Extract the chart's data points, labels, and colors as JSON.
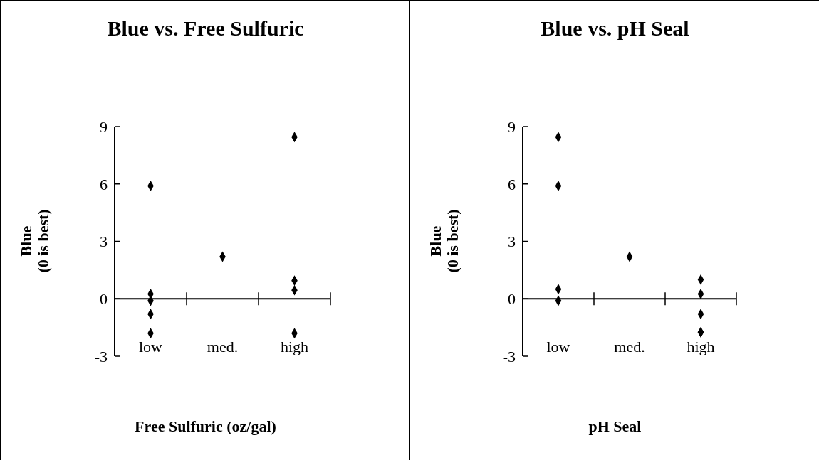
{
  "chart_data": [
    {
      "type": "scatter",
      "title": "Blue vs. Free Sulfuric",
      "xlabel": "Free Sulfuric (oz/gal)",
      "ylabel": "Blue\n(0 is best)",
      "marker": "diamond",
      "grid": false,
      "legend": false,
      "categories": [
        "low",
        "med.",
        "high"
      ],
      "ylim": [
        -3,
        9
      ],
      "yticks": [
        -3,
        0,
        3,
        6,
        9
      ],
      "series": [
        {
          "color": "#000000",
          "x": [
            "low",
            "low",
            "low",
            "low",
            "low",
            "med.",
            "high",
            "high",
            "high",
            "high"
          ],
          "values": [
            5.9,
            0.25,
            -0.1,
            -0.8,
            -1.8,
            2.2,
            8.45,
            0.95,
            0.45,
            -1.8
          ]
        }
      ]
    },
    {
      "type": "scatter",
      "title": "Blue vs. pH Seal",
      "xlabel": "pH Seal",
      "ylabel": "Blue\n(0 is best)",
      "marker": "diamond",
      "grid": false,
      "legend": false,
      "categories": [
        "low",
        "med.",
        "high"
      ],
      "ylim": [
        -3,
        9
      ],
      "yticks": [
        -3,
        0,
        3,
        6,
        9
      ],
      "series": [
        {
          "color": "#000000",
          "x": [
            "low",
            "low",
            "low",
            "low",
            "med.",
            "high",
            "high",
            "high",
            "high",
            "high"
          ],
          "values": [
            8.45,
            0.5,
            -0.1,
            5.9,
            2.2,
            0.25,
            1.0,
            -0.8,
            -1.75,
            -1.75
          ]
        }
      ]
    }
  ]
}
